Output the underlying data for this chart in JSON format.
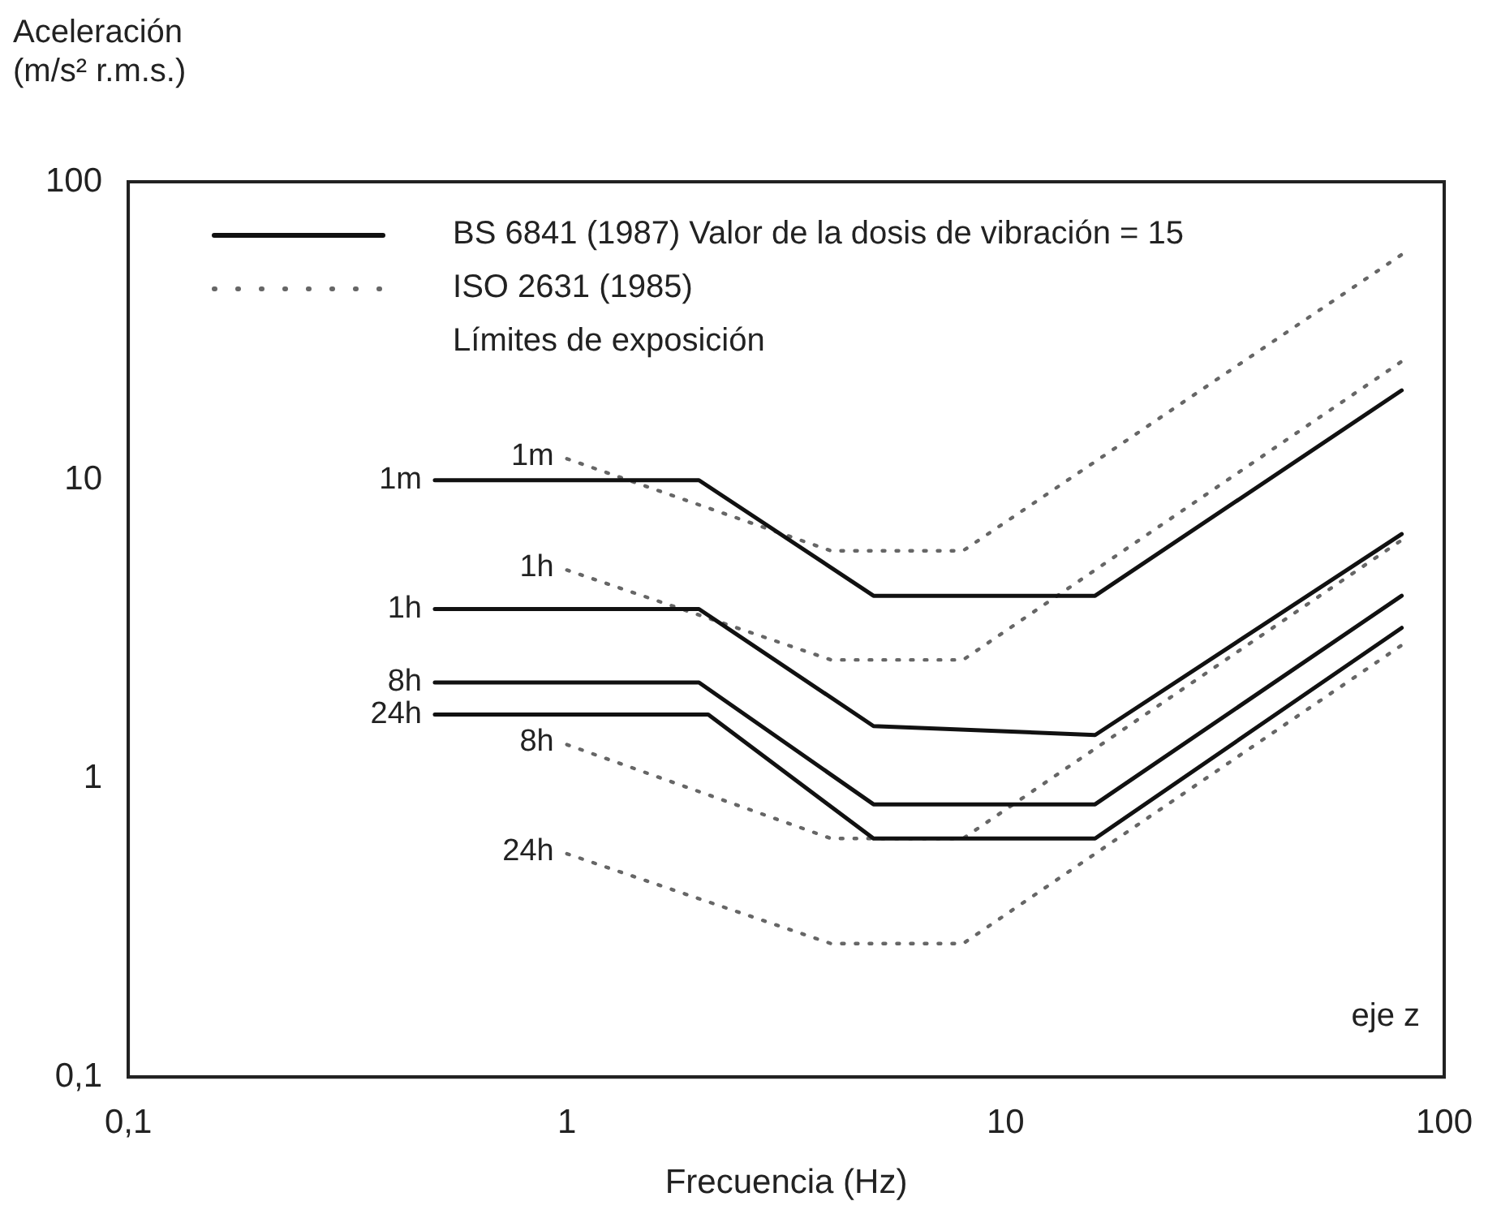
{
  "chart_data": {
    "type": "line",
    "xlabel": "Frecuencia (Hz)",
    "ylabel": "Aceleración\n(m/s² r.m.s.)",
    "log": "xy",
    "grid": false,
    "marker": "none",
    "xlim": [
      0.1,
      100
    ],
    "ylim": [
      0.1,
      100
    ],
    "xticks": [
      {
        "value": 0.1,
        "label": "0,1"
      },
      1,
      10,
      100
    ],
    "yticks": [
      {
        "value": 0.1,
        "label": "0,1"
      },
      1,
      10,
      100
    ],
    "annotations": [
      "BS 6841 (1987) Valor de la dosis de vibración = 15",
      "ISO 2631 (1985)",
      "Límites de exposición",
      "eje z"
    ],
    "series": [
      {
        "name": "1m",
        "color": "#111111",
        "line_style": "solid",
        "x": [
          0.5,
          2,
          5,
          16,
          80
        ],
        "values": [
          10,
          10,
          4.1,
          4.1,
          20
        ]
      },
      {
        "name": "1h",
        "color": "#111111",
        "line_style": "solid",
        "x": [
          0.5,
          2,
          5,
          16,
          80
        ],
        "values": [
          3.7,
          3.7,
          1.5,
          1.4,
          6.6
        ]
      },
      {
        "name": "8h",
        "color": "#111111",
        "line_style": "solid",
        "x": [
          0.5,
          2,
          5,
          16,
          80
        ],
        "values": [
          2.1,
          2.1,
          0.82,
          0.82,
          4.1
        ]
      },
      {
        "name": "24h",
        "color": "#111111",
        "line_style": "solid",
        "x": [
          0.5,
          2.1,
          5,
          16,
          80
        ],
        "values": [
          1.64,
          1.64,
          0.63,
          0.63,
          3.2
        ]
      },
      {
        "name": "1m",
        "color": "#666666",
        "line_style": "dotted",
        "x": [
          1,
          4,
          8,
          80
        ],
        "values": [
          11.8,
          5.8,
          5.8,
          57
        ]
      },
      {
        "name": "1h",
        "color": "#666666",
        "line_style": "dotted",
        "x": [
          1,
          4,
          8,
          80
        ],
        "values": [
          5,
          2.5,
          2.5,
          25
        ]
      },
      {
        "name": "8h",
        "color": "#666666",
        "line_style": "dotted",
        "x": [
          1,
          4,
          8,
          80
        ],
        "values": [
          1.3,
          0.63,
          0.63,
          6.3
        ]
      },
      {
        "name": "24h",
        "color": "#666666",
        "line_style": "dotted",
        "x": [
          1,
          4,
          8,
          80
        ],
        "values": [
          0.56,
          0.28,
          0.28,
          2.8
        ]
      }
    ]
  }
}
